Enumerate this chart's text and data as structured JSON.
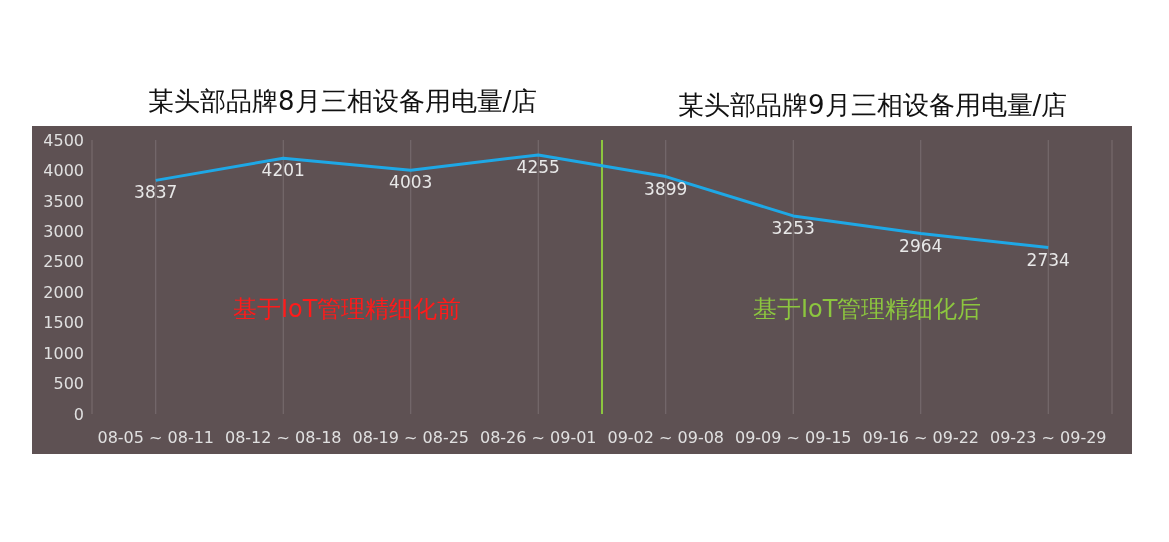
{
  "chart_data": {
    "type": "line",
    "title": "某头部品牌8月三相设备用电量/店",
    "subtitle": "某头部品牌9月三相设备用电量/店",
    "categories": [
      "08-05 ~ 08-11",
      "08-12 ~ 08-18",
      "08-19 ~ 08-25",
      "08-26 ~ 09-01",
      "09-02 ~ 09-08",
      "09-09 ~ 09-15",
      "09-16 ~ 09-22",
      "09-23 ~ 09-29"
    ],
    "series": [
      {
        "color": "#1ea8e6",
        "values": [
          3837,
          4201,
          4003,
          4255,
          3899,
          3253,
          2964,
          2734
        ]
      }
    ],
    "ylim": [
      0,
      4500
    ],
    "yticks": [
      0,
      500,
      1000,
      1500,
      2000,
      2500,
      3000,
      3500,
      4000,
      4500
    ],
    "grid": "x",
    "data_labels": true,
    "marker": "none",
    "line_style": "solid",
    "ref_lines": [
      {
        "axis": "x",
        "value": "08-26 ~ 09-01",
        "color": "#8cc63f"
      }
    ],
    "annotations": [
      "基于IoT管理精细化前",
      "基于IoT管理精细化后"
    ]
  }
}
